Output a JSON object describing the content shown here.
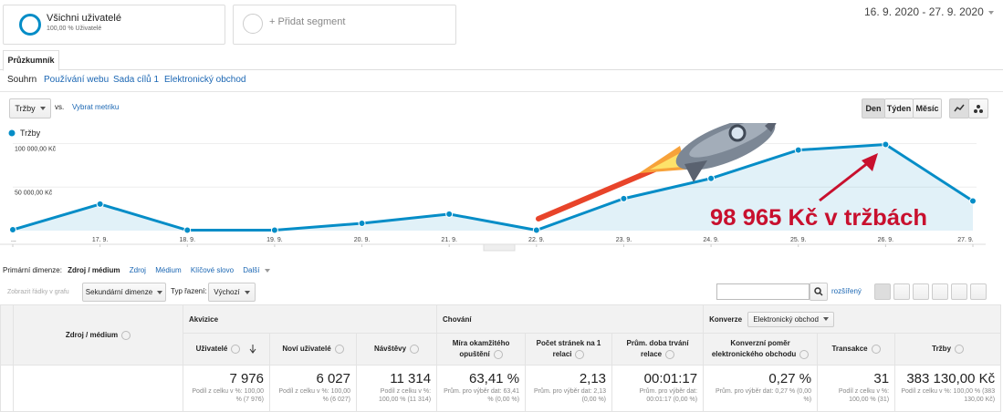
{
  "segments": {
    "active": {
      "name": "Všichni uživatelé",
      "detail": "100,00 % Uživatelé"
    },
    "add": "+ Přidat segment"
  },
  "date_range": "16. 9. 2020 - 27. 9. 2020",
  "tab": "Průzkumník",
  "subtabs": [
    "Souhrn",
    "Používání webu",
    "Sada cílů 1",
    "Elektronický obchod"
  ],
  "metric_picker": {
    "metric": "Tržby",
    "vs": "vs.",
    "select": "Vybrat metriku"
  },
  "period_buttons": [
    "Den",
    "Týden",
    "Měsíc"
  ],
  "chart_data": {
    "type": "line",
    "categories": [
      "...",
      "17. 9.",
      "18. 9.",
      "19. 9.",
      "20. 9.",
      "21. 9.",
      "22. 9.",
      "23. 9.",
      "24. 9.",
      "25. 9.",
      "26. 9.",
      "27. 9."
    ],
    "series": [
      {
        "name": "Tržby",
        "color": "#058dc7",
        "values": [
          1000,
          30500,
          500,
          500,
          8400,
          19000,
          500,
          36800,
          60000,
          92600,
          98965,
          34000
        ]
      }
    ],
    "ylim": [
      0,
      110000
    ],
    "yticks": [
      {
        "value": 50000,
        "label": "50 000,00 Kč"
      },
      {
        "value": 100000,
        "label": "100 000,00 Kč"
      }
    ],
    "grid": true,
    "area": true,
    "annotation": "98 965 Kč v tržbách"
  },
  "dimensions": {
    "label": "Primární dimenze:",
    "items": [
      "Zdroj / médium",
      "Zdroj",
      "Médium",
      "Klíčové slovo",
      "Další"
    ]
  },
  "toolbar": {
    "plot_rows": "Zobrazit řádky v grafu",
    "secondary": "Sekundární dimenze",
    "sort_label": "Typ řazení:",
    "sort": "Výchozí",
    "advanced": "rozšířený"
  },
  "table": {
    "groups": [
      "Akvizice",
      "Chování",
      "Konverze"
    ],
    "conversion_select": "Elektronický obchod",
    "dimension_header": "Zdroj / médium",
    "columns": [
      "Uživatelé",
      "Noví uživatelé",
      "Návštěvy",
      "Míra okamžitého opuštění",
      "Počet stránek na 1 relaci",
      "Prům. doba trvání relace",
      "Konverzní poměr elektronického obchodu",
      "Transakce",
      "Tržby"
    ],
    "totals": [
      {
        "value": "7 976",
        "note": "Podíl z celku v %: 100,00 % (7 976)"
      },
      {
        "value": "6 027",
        "note": "Podíl z celku v %: 100,00 % (6 027)"
      },
      {
        "value": "11 314",
        "note": "Podíl z celku v %: 100,00 % (11 314)"
      },
      {
        "value": "63,41 %",
        "note": "Prům. pro výběr dat: 63,41 % (0,00 %)"
      },
      {
        "value": "2,13",
        "note": "Prům. pro výběr dat: 2,13 (0,00 %)"
      },
      {
        "value": "00:01:17",
        "note": "Prům. pro výběr dat: 00:01:17 (0,00 %)"
      },
      {
        "value": "0,27 %",
        "note": "Prům. pro výběr dat: 0,27 % (0,00 %)"
      },
      {
        "value": "31",
        "note": "Podíl z celku v %: 100,00 % (31)"
      },
      {
        "value": "383 130,00 Kč",
        "note": "Podíl z celku v %: 100,00 % (383 130,00 Kč)"
      }
    ]
  }
}
